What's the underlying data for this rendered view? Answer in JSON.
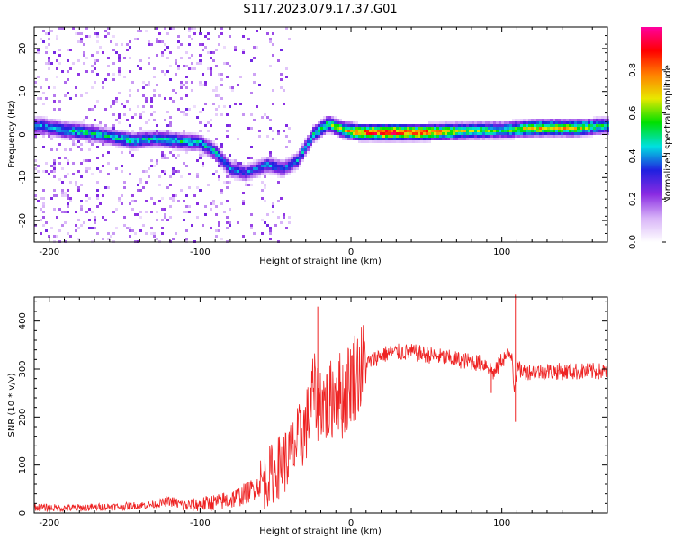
{
  "page_title": "S117.2023.079.17.37.G01",
  "chart_data": [
    {
      "type": "heatmap",
      "xlabel": "Height of straight line (km)",
      "ylabel": "Frequency (Hz)",
      "xlim": [
        -210,
        170
      ],
      "ylim": [
        -25,
        25
      ],
      "xticks": [
        -200,
        -100,
        0,
        100
      ],
      "yticks": [
        -20,
        -10,
        0,
        10,
        20
      ],
      "colorbar": {
        "label": "Normalized spectral amplitude",
        "range": [
          0.0,
          1.0
        ],
        "ticks": [
          0.0,
          0.2,
          0.4,
          0.6,
          0.8
        ],
        "tick_labels": [
          "0.0",
          "0.2",
          "0.4",
          "0.6",
          "0.8"
        ],
        "colors": [
          "#ffffff",
          "#d8b4f8",
          "#8a2be2",
          "#2020e0",
          "#00e0e0",
          "#00e000",
          "#e8e800",
          "#ff8000",
          "#ff0000",
          "#ff00a0"
        ]
      },
      "ridge": [
        {
          "x": -205,
          "f": 2.0,
          "amp": 0.45
        },
        {
          "x": -190,
          "f": 1.0,
          "amp": 0.5
        },
        {
          "x": -175,
          "f": 0.5,
          "amp": 0.55
        },
        {
          "x": -160,
          "f": -0.5,
          "amp": 0.5
        },
        {
          "x": -145,
          "f": -1.5,
          "amp": 0.55
        },
        {
          "x": -130,
          "f": -1.0,
          "amp": 0.5
        },
        {
          "x": -115,
          "f": -1.5,
          "amp": 0.55
        },
        {
          "x": -100,
          "f": -2.0,
          "amp": 0.5
        },
        {
          "x": -90,
          "f": -4.0,
          "amp": 0.5
        },
        {
          "x": -80,
          "f": -8.0,
          "amp": 0.45
        },
        {
          "x": -70,
          "f": -9.0,
          "amp": 0.4
        },
        {
          "x": -55,
          "f": -7.0,
          "amp": 0.45
        },
        {
          "x": -45,
          "f": -8.0,
          "amp": 0.4
        },
        {
          "x": -35,
          "f": -6.0,
          "amp": 0.45
        },
        {
          "x": -25,
          "f": 0.0,
          "amp": 0.55
        },
        {
          "x": -15,
          "f": 2.5,
          "amp": 0.6
        },
        {
          "x": -5,
          "f": 1.0,
          "amp": 0.7
        },
        {
          "x": 5,
          "f": 0.5,
          "amp": 0.95
        },
        {
          "x": 25,
          "f": 0.5,
          "amp": 1.0
        },
        {
          "x": 50,
          "f": 0.5,
          "amp": 0.95
        },
        {
          "x": 75,
          "f": 0.8,
          "amp": 0.7
        },
        {
          "x": 100,
          "f": 1.0,
          "amp": 0.6
        },
        {
          "x": 125,
          "f": 1.5,
          "amp": 0.8
        },
        {
          "x": 150,
          "f": 1.5,
          "amp": 0.75
        },
        {
          "x": 168,
          "f": 2.0,
          "amp": 0.55
        }
      ]
    },
    {
      "type": "line",
      "xlabel": "Height of straight line (km)",
      "ylabel": "SNR (10 * v/v)",
      "xlim": [
        -210,
        170
      ],
      "ylim": [
        0,
        450
      ],
      "xticks": [
        -200,
        -100,
        0,
        100
      ],
      "yticks": [
        0,
        100,
        200,
        300,
        400
      ],
      "line_color": "#ee2222",
      "series": [
        {
          "x": [
            -210,
            -190,
            -170,
            -150,
            -130,
            -120,
            -110,
            -100,
            -90,
            -80,
            -70,
            -60,
            -50,
            -40,
            -35,
            -30,
            -28,
            -25,
            -22,
            -20,
            -15,
            -10,
            -5,
            0,
            10,
            20,
            30,
            40,
            50,
            60,
            70,
            80,
            90,
            95,
            100,
            105,
            107,
            108,
            110,
            115,
            120,
            130,
            140,
            150,
            160,
            170
          ],
          "values": [
            12,
            10,
            12,
            14,
            18,
            25,
            15,
            18,
            22,
            28,
            40,
            60,
            90,
            120,
            150,
            180,
            200,
            260,
            230,
            240,
            220,
            260,
            240,
            280,
            310,
            330,
            335,
            335,
            330,
            325,
            320,
            315,
            310,
            290,
            320,
            330,
            330,
            260,
            300,
            295,
            295,
            295,
            295,
            295,
            295,
            295
          ]
        }
      ],
      "spikes": [
        {
          "x": -22,
          "value": 430
        },
        {
          "x": 109,
          "value": 455
        },
        {
          "x": 109,
          "value": 190
        },
        {
          "x": 93,
          "value": 250
        }
      ]
    }
  ]
}
